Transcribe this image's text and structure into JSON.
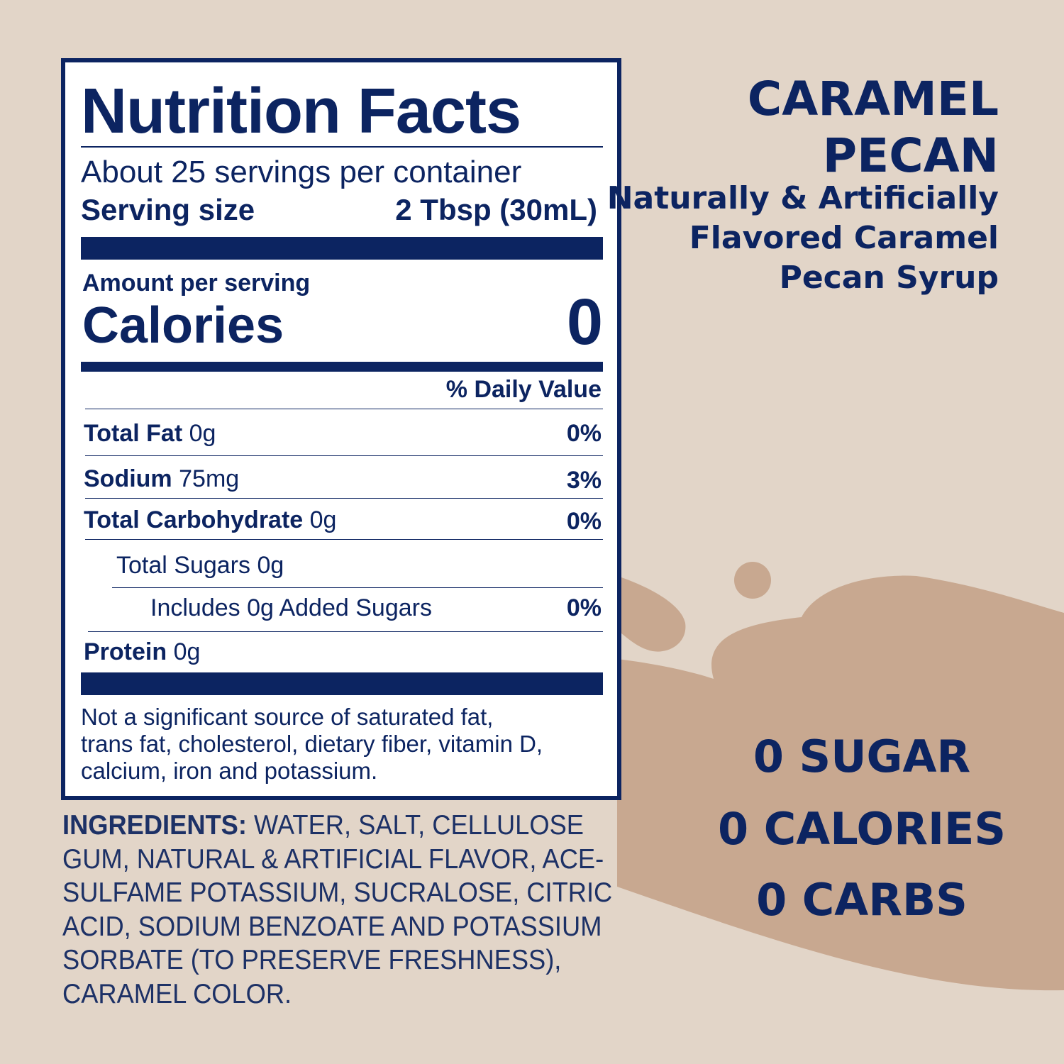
{
  "colors": {
    "background": "#e2d5c8",
    "blob": "#c8a890",
    "navy": "#0c2461",
    "panel": "#ffffff"
  },
  "nutrition": {
    "title": "Nutrition Facts",
    "servings": "About 25 servings per container",
    "serving_size_label": "Serving size",
    "serving_size_value": "2 Tbsp (30mL)",
    "amount_per_serving": "Amount per serving",
    "calories_label": "Calories",
    "calories_value": "0",
    "daily_value_header": "% Daily Value",
    "rows": [
      {
        "label": "Total Fat",
        "amount": "0g",
        "dv": "0%"
      },
      {
        "label": "Sodium",
        "amount": "75mg",
        "dv": "3%"
      },
      {
        "label": "Total Carbohydrate",
        "amount": "0g",
        "dv": "0%"
      },
      {
        "label": "Total Sugars 0g",
        "amount": "",
        "dv": ""
      },
      {
        "label": "Includes 0g Added Sugars",
        "amount": "",
        "dv": "0%"
      },
      {
        "label": "Protein",
        "amount": "0g",
        "dv": ""
      }
    ],
    "footnote": [
      "Not a significant source of saturated fat,",
      "trans fat, cholesterol, dietary fiber, vitamin D,",
      "calcium, iron and potassium."
    ]
  },
  "ingredients": {
    "label": "INGREDIENTS:",
    "lines": [
      " WATER, SALT, CELLULOSE",
      "GUM, NATURAL & ARTIFICIAL FLAVOR, ACE-",
      "SULFAME POTASSIUM, SUCRALOSE, CITRIC",
      "ACID, SODIUM BENZOATE AND POTASSIUM",
      "SORBATE (TO PRESERVE FRESHNESS),",
      "CARAMEL COLOR."
    ]
  },
  "product": {
    "name_lines": [
      "CARAMEL",
      "PECAN"
    ],
    "description_lines": [
      "Naturally & Artificially",
      "Flavored Caramel",
      "Pecan Syrup"
    ]
  },
  "claims": [
    "0 SUGAR",
    "0 CALORIES",
    "0 CARBS"
  ]
}
